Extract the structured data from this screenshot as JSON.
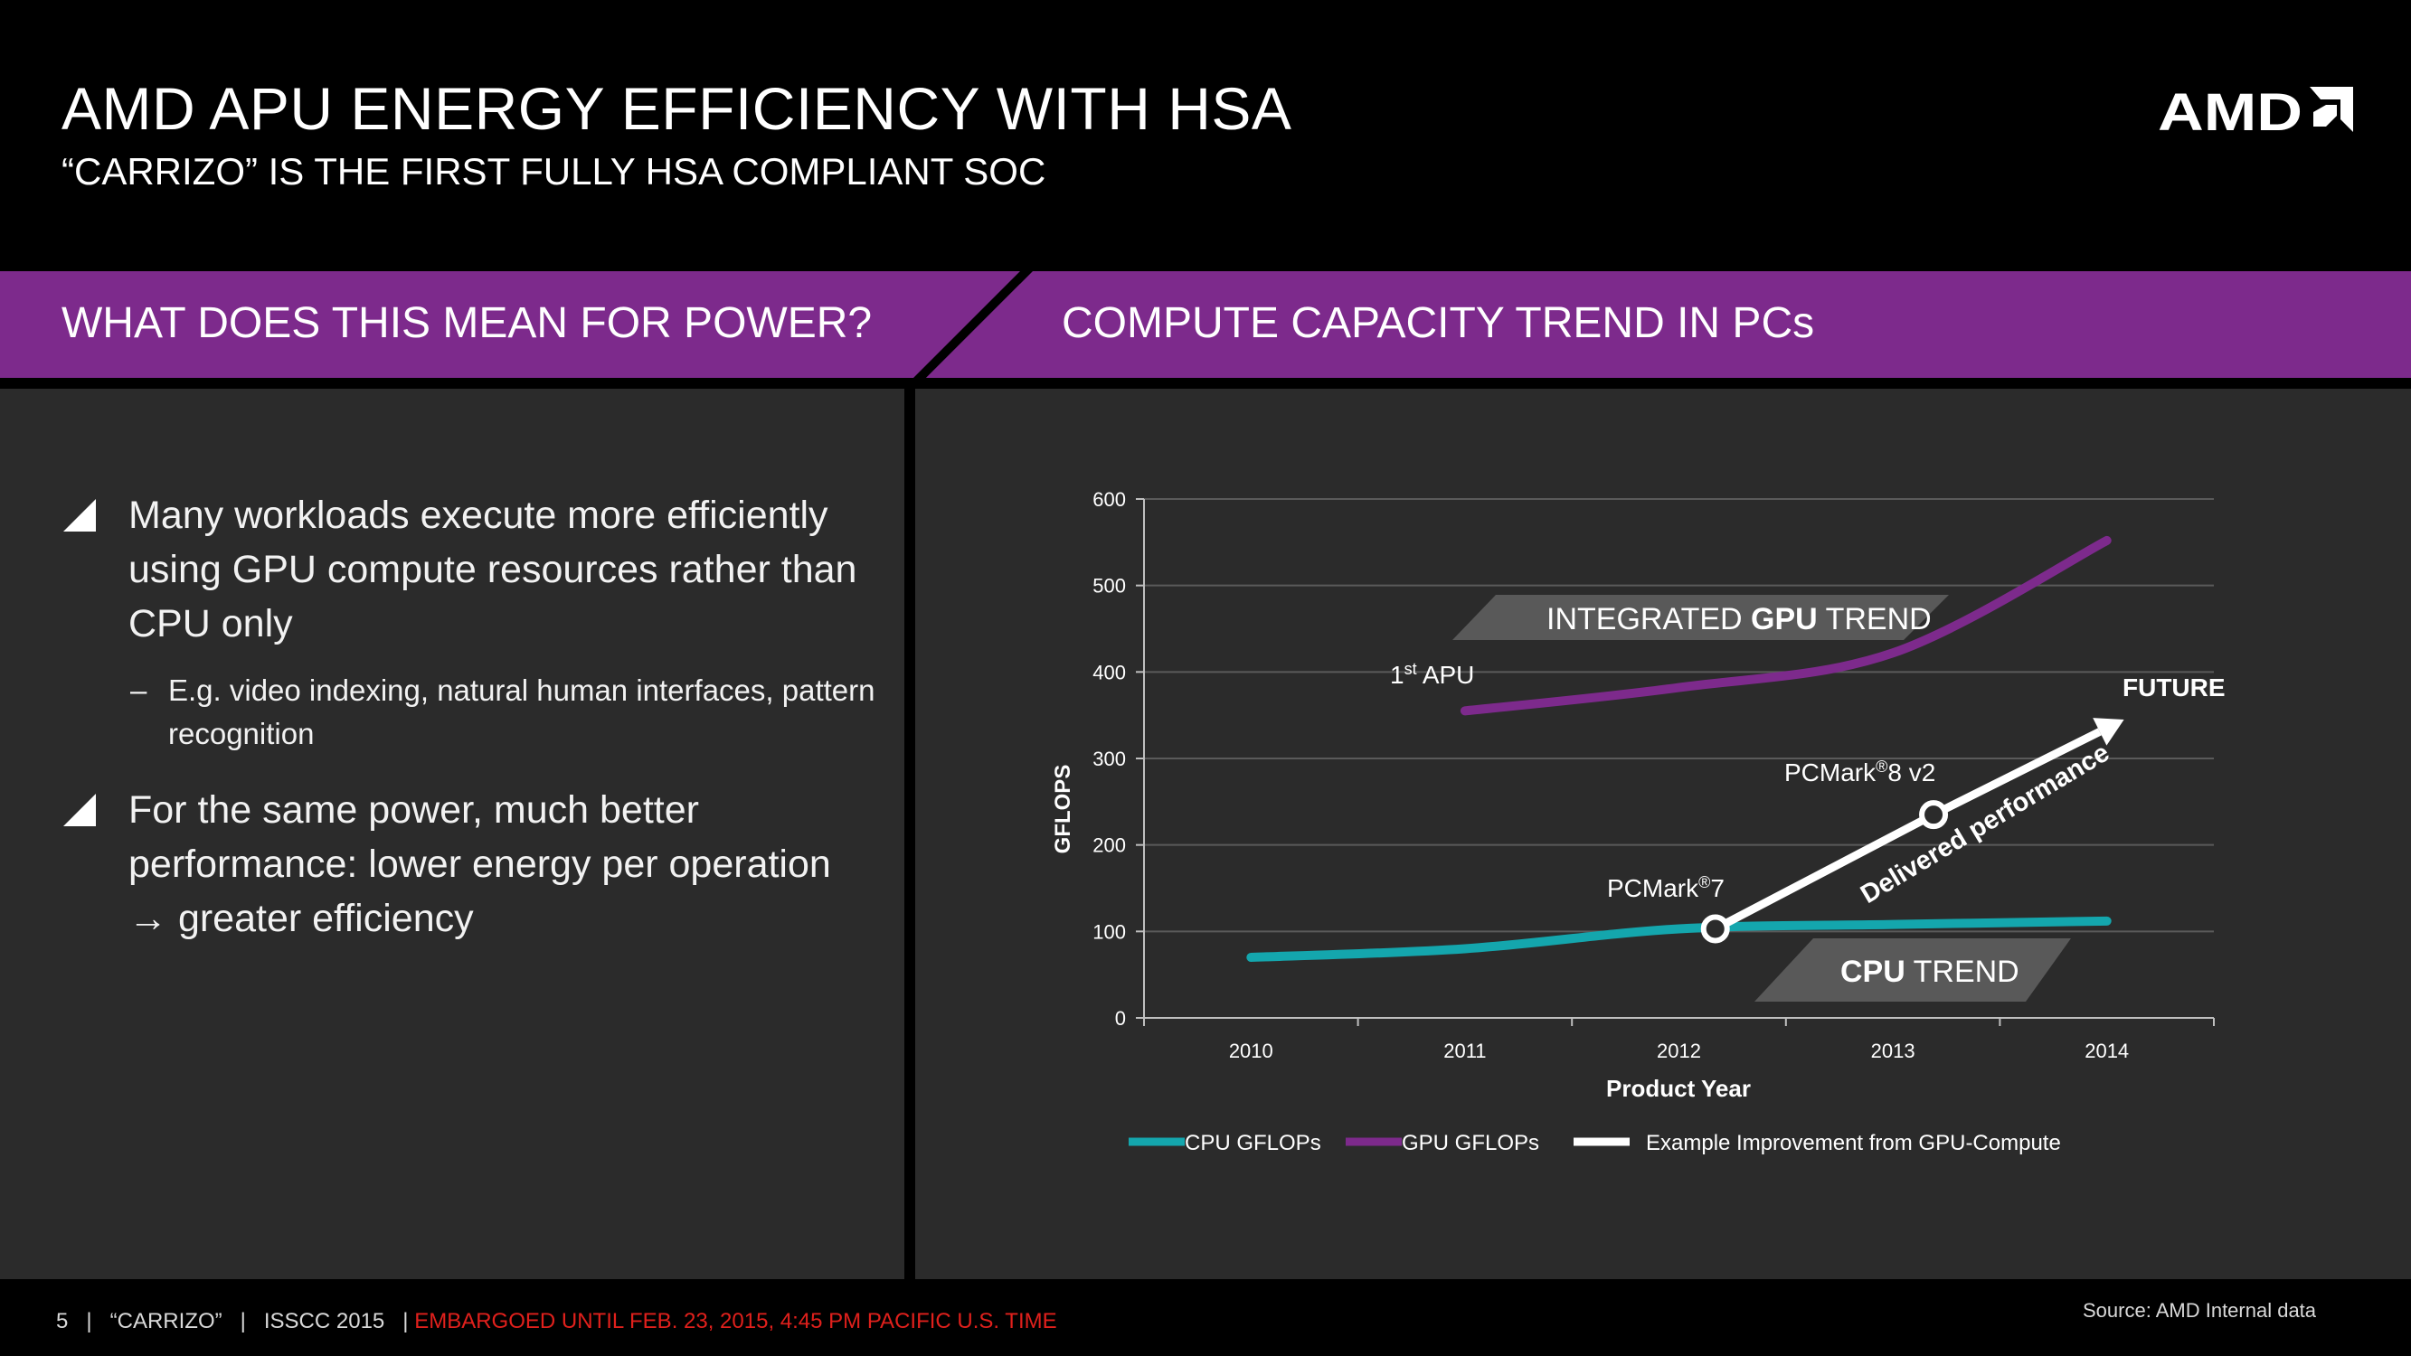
{
  "header": {
    "title": "AMD APU ENERGY EFFICIENCY WITH HSA",
    "subtitle": "“CARRIZO” IS THE FIRST FULLY HSA COMPLIANT SOC",
    "logo_text": "AMD"
  },
  "band": {
    "left_title": "WHAT DOES THIS MEAN FOR POWER?",
    "right_title": "COMPUTE CAPACITY TREND IN PCs"
  },
  "bullets": {
    "b1": "Many workloads execute more efficiently using GPU compute resources rather than CPU only",
    "b1_sub_dash": "–",
    "b1_sub": "E.g. video indexing, natural human interfaces, pattern recognition",
    "b2_part1": "For the same power, much better performance: lower energy per operation",
    "b2_arrow": "→",
    "b2_part2": "greater efficiency"
  },
  "chart_data": {
    "type": "line",
    "ylabel": "GFLOPS",
    "xlabel": "Product Year",
    "ylim": [
      0,
      600
    ],
    "yticks": [
      0,
      100,
      200,
      300,
      400,
      500,
      600
    ],
    "categories": [
      "2010",
      "2011",
      "2012",
      "2013",
      "2014"
    ],
    "grid": true,
    "series": [
      {
        "name": "CPU GFLOPs",
        "color": "#14a6ad",
        "x": [
          0,
          1,
          2,
          3,
          4
        ],
        "values": [
          70,
          80,
          103,
          108,
          112
        ]
      },
      {
        "name": "GPU GFLOPs",
        "color": "#7d2a8c",
        "x": [
          1,
          2,
          3,
          4
        ],
        "values": [
          355,
          382,
          422,
          552
        ]
      },
      {
        "name": "Example Improvement from GPU-Compute",
        "color": "#ffffff",
        "x": [
          2.17,
          3.19,
          4.08
        ],
        "values": [
          103,
          235,
          345
        ]
      }
    ],
    "annotations": {
      "gpu_trend_pre": "INTEGRATED ",
      "gpu_trend_bold": "GPU",
      "gpu_trend_post": " TREND",
      "cpu_trend_bold": "CPU",
      "cpu_trend_post": " TREND",
      "first_apu_pre": "1",
      "first_apu_sup": "st",
      "first_apu_post": " APU",
      "future": "FUTURE",
      "pcmark7_pre": "PCMark",
      "pcmark7_sup": "®",
      "pcmark7_post": "7",
      "pcmark8_pre": "PCMark",
      "pcmark8_sup": "®",
      "pcmark8_post": "8 v2",
      "delivered": "Delivered performance"
    }
  },
  "footer": {
    "page": "5",
    "sep": "|",
    "codename": "“CARRIZO”",
    "event": "ISSCC 2015",
    "embargo": "EMBARGOED UNTIL FEB. 23, 2015, 4:45 PM PACIFIC U.S. TIME",
    "source": "Source: AMD Internal data"
  },
  "colors": {
    "purple": "#7d2a8c",
    "panel": "#2b2b2b",
    "teal": "#14a6ad",
    "embargo_red": "#e0201c"
  }
}
